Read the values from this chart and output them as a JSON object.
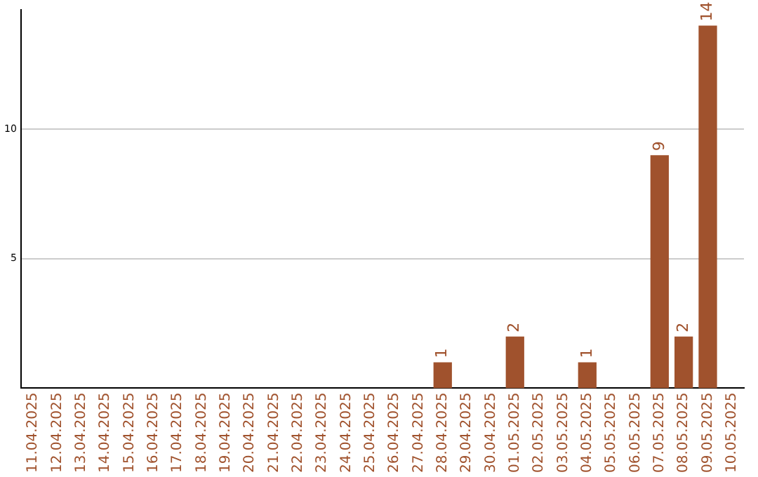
{
  "chart_data": {
    "type": "bar",
    "categories": [
      "11.04.2025",
      "12.04.2025",
      "13.04.2025",
      "14.04.2025",
      "15.04.2025",
      "16.04.2025",
      "17.04.2025",
      "18.04.2025",
      "19.04.2025",
      "20.04.2025",
      "21.04.2025",
      "22.04.2025",
      "23.04.2025",
      "24.04.2025",
      "25.04.2025",
      "26.04.2025",
      "27.04.2025",
      "28.04.2025",
      "29.04.2025",
      "30.04.2025",
      "01.05.2025",
      "02.05.2025",
      "03.05.2025",
      "04.05.2025",
      "05.05.2025",
      "06.05.2025",
      "07.05.2025",
      "08.05.2025",
      "09.05.2025",
      "10.05.2025"
    ],
    "values": [
      0,
      0,
      0,
      0,
      0,
      0,
      0,
      0,
      0,
      0,
      0,
      0,
      0,
      0,
      0,
      0,
      0,
      1,
      0,
      0,
      2,
      0,
      0,
      1,
      0,
      0,
      9,
      2,
      14,
      0
    ],
    "value_labels": [
      null,
      null,
      null,
      null,
      null,
      null,
      null,
      null,
      null,
      null,
      null,
      null,
      null,
      null,
      null,
      null,
      null,
      "1",
      null,
      null,
      "2",
      null,
      null,
      "1",
      null,
      null,
      "9",
      "2",
      "14",
      null
    ],
    "color": "#a0522d",
    "ylim": [
      0,
      14.6
    ],
    "yticks": [
      5,
      10
    ],
    "grid": "y",
    "legend": false
  }
}
